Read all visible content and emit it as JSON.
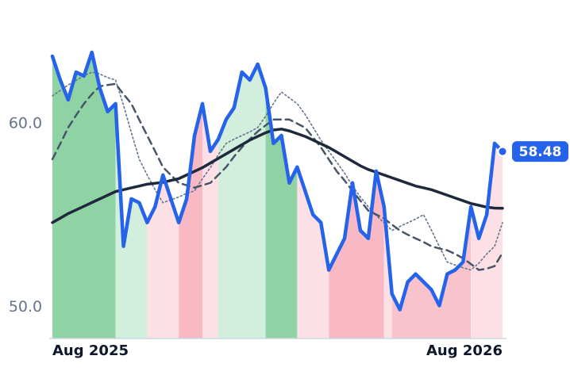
{
  "chart_data": {
    "type": "line",
    "categories": [
      "Aug 2025",
      null,
      null,
      null,
      null,
      null,
      null,
      null,
      null,
      null,
      null,
      null,
      null,
      null,
      null,
      null,
      null,
      null,
      null,
      null,
      null,
      null,
      null,
      null,
      null,
      null,
      null,
      null,
      null,
      null,
      null,
      null,
      null,
      null,
      null,
      null,
      null,
      null,
      null,
      null,
      null,
      null,
      null,
      null,
      null,
      null,
      null,
      null,
      null,
      null,
      null,
      null,
      null,
      null,
      null,
      null,
      null,
      "Aug 2026"
    ],
    "series": [
      {
        "color": "#2563eb",
        "style": "price",
        "values": [
          63.66,
          62.37,
          61.29,
          62.8,
          62.59,
          63.88,
          61.94,
          60.65,
          61.08,
          53.32,
          55.9,
          55.69,
          54.61,
          55.47,
          57.2,
          55.9,
          54.61,
          55.9,
          59.35,
          61.08,
          58.49,
          59.14,
          60.22,
          60.86,
          62.8,
          62.37,
          63.23,
          61.94,
          58.92,
          59.35,
          56.77,
          57.63,
          56.34,
          55.04,
          54.61,
          52.03,
          52.89,
          53.75,
          56.77,
          54.18,
          53.75,
          57.41,
          55.47,
          50.73,
          49.87,
          51.38,
          51.81,
          51.38,
          50.95,
          50.09,
          51.81,
          52.03,
          52.46,
          55.47,
          53.75,
          55.04,
          58.92,
          58.48
        ]
      },
      {
        "color": "#1e293b",
        "style": "solid",
        "values": [
          54.61,
          54.85,
          55.1,
          55.3,
          55.5,
          55.7,
          55.9,
          56.1,
          56.3,
          56.4,
          56.5,
          56.6,
          56.7,
          56.75,
          56.8,
          56.9,
          57.0,
          57.2,
          57.4,
          57.6,
          57.85,
          58.1,
          58.35,
          58.6,
          58.85,
          59.1,
          59.3,
          59.5,
          59.65,
          59.7,
          59.6,
          59.45,
          59.3,
          59.1,
          58.9,
          58.7,
          58.45,
          58.2,
          57.95,
          57.7,
          57.5,
          57.35,
          57.2,
          57.05,
          56.9,
          56.75,
          56.6,
          56.5,
          56.4,
          56.25,
          56.1,
          55.95,
          55.8,
          55.65,
          55.55,
          55.45,
          55.4,
          55.39
        ]
      },
      {
        "color": "#475569",
        "style": "dashed",
        "values": [
          58.06,
          58.9,
          59.78,
          60.45,
          61.08,
          61.6,
          62.03,
          62.1,
          62.16,
          61.6,
          61.08,
          60.2,
          59.35,
          58.5,
          57.63,
          57.2,
          56.77,
          56.64,
          56.51,
          56.64,
          56.77,
          57.2,
          57.63,
          58.2,
          58.71,
          59.15,
          59.57,
          59.9,
          60.22,
          60.22,
          60.22,
          60.0,
          59.78,
          59.25,
          58.71,
          58.05,
          57.41,
          56.9,
          56.34,
          55.8,
          55.26,
          55.05,
          54.83,
          54.5,
          54.18,
          53.95,
          53.75,
          53.55,
          53.32,
          53.2,
          53.1,
          52.9,
          52.67,
          52.35,
          52.03,
          52.1,
          52.24,
          52.97
        ]
      },
      {
        "color": "#64748b",
        "style": "dotted",
        "values": [
          61.51,
          61.8,
          62.1,
          62.35,
          62.6,
          62.8,
          62.7,
          62.5,
          62.37,
          61.0,
          59.5,
          58.06,
          57.2,
          56.4,
          55.69,
          55.85,
          56.0,
          56.2,
          56.34,
          57.0,
          57.6,
          58.3,
          58.92,
          59.15,
          59.35,
          59.55,
          59.78,
          60.4,
          61.1,
          61.72,
          61.4,
          61.08,
          60.5,
          59.8,
          59.1,
          58.49,
          57.9,
          57.3,
          56.6,
          56.0,
          55.47,
          55.0,
          54.6,
          54.18,
          54.4,
          54.6,
          54.8,
          55.04,
          54.2,
          53.3,
          52.46,
          52.3,
          52.15,
          52.03,
          52.4,
          52.9,
          53.32,
          54.61
        ]
      }
    ],
    "regions": [
      {
        "from": 0,
        "to": 8,
        "color": "#8fd3a4"
      },
      {
        "from": 8,
        "to": 12,
        "color": "#d2eedc"
      },
      {
        "from": 12,
        "to": 16,
        "color": "#fde0e5"
      },
      {
        "from": 16,
        "to": 19,
        "color": "#f8b8c4"
      },
      {
        "from": 19,
        "to": 21,
        "color": "#fde0e5"
      },
      {
        "from": 21,
        "to": 27,
        "color": "#d2eedc"
      },
      {
        "from": 27,
        "to": 31,
        "color": "#8fd3a4"
      },
      {
        "from": 31,
        "to": 35,
        "color": "#fde0e5"
      },
      {
        "from": 35,
        "to": 42,
        "color": "#f8b8c4"
      },
      {
        "from": 42,
        "to": 43,
        "color": "#fde0e5"
      },
      {
        "from": 43,
        "to": 53,
        "color": "#f9c3cd"
      },
      {
        "from": 53,
        "to": 57,
        "color": "#fde0e5"
      }
    ],
    "ylim": [
      48.3,
      65
    ],
    "yticks": [
      {
        "value": 50,
        "label": "50.0"
      },
      {
        "value": 60,
        "label": "60.0"
      }
    ]
  }
}
